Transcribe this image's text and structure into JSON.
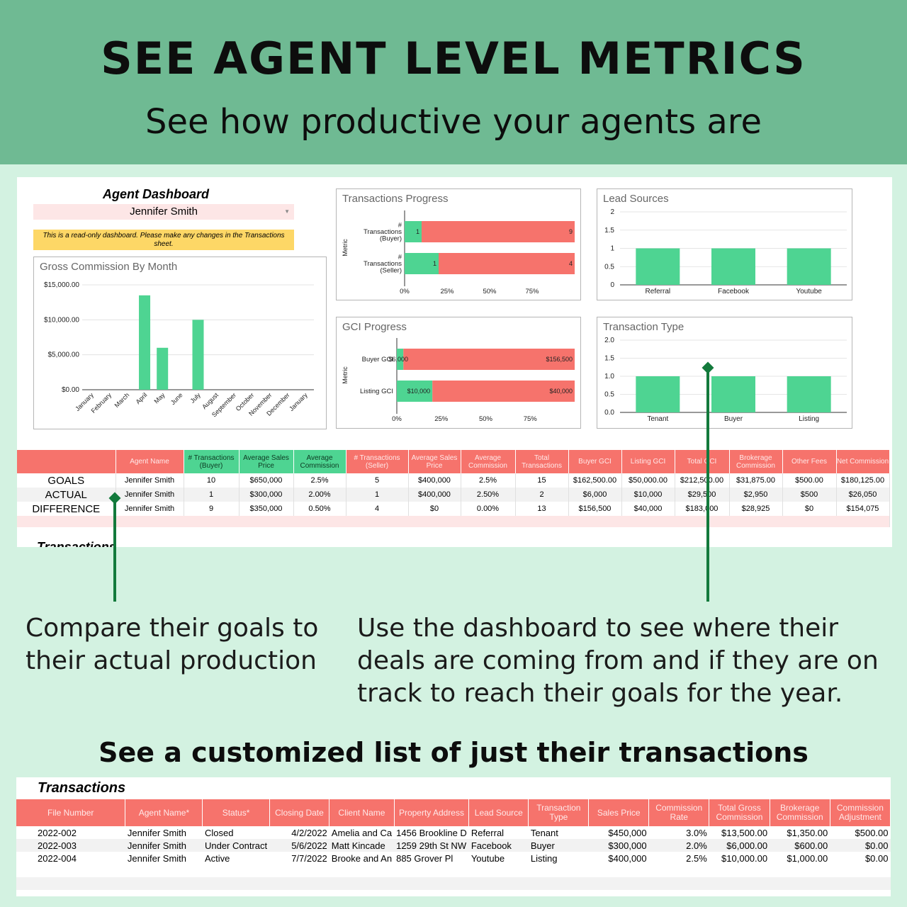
{
  "banner": {
    "title": "SEE AGENT LEVEL METRICS",
    "subtitle": "See how productive your agents are"
  },
  "dashboard": {
    "title": "Agent Dashboard",
    "agent_selected": "Jennifer Smith",
    "readonly_note": "This is a read-only dashboard.  Please make any changes in the Transactions sheet.",
    "transactions_cut_label": "Transactions"
  },
  "chart_data": [
    {
      "type": "bar",
      "title": "Gross Commission By Month",
      "categories": [
        "January",
        "February",
        "March",
        "April",
        "May",
        "June",
        "July",
        "August",
        "September",
        "October",
        "November",
        "December",
        "January"
      ],
      "values": [
        0,
        0,
        0,
        13500,
        6000,
        0,
        10000,
        0,
        0,
        0,
        0,
        0,
        0
      ],
      "yticks": [
        "$0.00",
        "$5,000.00",
        "$10,000.00",
        "$15,000.00"
      ],
      "ylim": [
        0,
        15000
      ],
      "color": "#4ed492"
    },
    {
      "type": "bar",
      "orientation": "horizontal-stacked",
      "title": "Transactions Progress",
      "ylabel": "Metric",
      "categories": [
        "# Transactions (Buyer)",
        "# Transactions (Seller)"
      ],
      "series": [
        {
          "values": [
            1,
            1
          ],
          "color": "#4ed492"
        },
        {
          "values": [
            9,
            4
          ],
          "color": "#f6736c"
        }
      ],
      "xticks": [
        "0%",
        "25%",
        "50%",
        "75%"
      ]
    },
    {
      "type": "bar",
      "title": "Lead Sources",
      "categories": [
        "Referral",
        "Facebook",
        "Youtube"
      ],
      "values": [
        1,
        1,
        1
      ],
      "yticks": [
        "0",
        "0.5",
        "1",
        "1.5",
        "2"
      ],
      "ylim": [
        0,
        2
      ],
      "color": "#4ed492"
    },
    {
      "type": "bar",
      "orientation": "horizontal-stacked",
      "title": "GCI Progress",
      "ylabel": "Metric",
      "categories": [
        "Buyer GCI",
        "Listing GCI"
      ],
      "series": [
        {
          "values": [
            6000,
            10000
          ],
          "labels": [
            "$6,000",
            "$10,000"
          ],
          "color": "#4ed492"
        },
        {
          "values": [
            156500,
            40000
          ],
          "labels": [
            "$156,500",
            "$40,000"
          ],
          "color": "#f6736c"
        }
      ],
      "xticks": [
        "0%",
        "25%",
        "50%",
        "75%"
      ]
    },
    {
      "type": "bar",
      "title": "Transaction Type",
      "categories": [
        "Tenant",
        "Buyer",
        "Listing"
      ],
      "values": [
        1,
        1,
        1
      ],
      "yticks": [
        "0.0",
        "0.5",
        "1.0",
        "1.5",
        "2.0"
      ],
      "ylim": [
        0,
        2
      ],
      "color": "#4ed492"
    }
  ],
  "metrics_table": {
    "headers": [
      {
        "label": "Agent Name",
        "tone": "red"
      },
      {
        "label": "# Transactions (Buyer)",
        "tone": "green"
      },
      {
        "label": "Average Sales Price",
        "tone": "green"
      },
      {
        "label": "Average Commission",
        "tone": "green"
      },
      {
        "label": "# Transactions (Seller)",
        "tone": "red"
      },
      {
        "label": "Average Sales Price",
        "tone": "red"
      },
      {
        "label": "Average Commission",
        "tone": "red"
      },
      {
        "label": "Total Transactions",
        "tone": "red"
      },
      {
        "label": "Buyer GCI",
        "tone": "red"
      },
      {
        "label": "Listing GCI",
        "tone": "red"
      },
      {
        "label": "Total GCI",
        "tone": "red"
      },
      {
        "label": "Brokerage Commission",
        "tone": "red"
      },
      {
        "label": "Other Fees",
        "tone": "red"
      },
      {
        "label": "Net Commission",
        "tone": "red"
      }
    ],
    "rows": [
      {
        "label": "GOALS",
        "cells": [
          "Jennifer Smith",
          "10",
          "$650,000",
          "2.5%",
          "5",
          "$400,000",
          "2.5%",
          "15",
          "$162,500.00",
          "$50,000.00",
          "$212,500.00",
          "$31,875.00",
          "$500.00",
          "$180,125.00"
        ]
      },
      {
        "label": "ACTUAL",
        "cells": [
          "Jennifer Smith",
          "1",
          "$300,000",
          "2.00%",
          "1",
          "$400,000",
          "2.50%",
          "2",
          "$6,000",
          "$10,000",
          "$29,500",
          "$2,950",
          "$500",
          "$26,050"
        ]
      },
      {
        "label": "DIFFERENCE",
        "cells": [
          "Jennifer Smith",
          "9",
          "$350,000",
          "0.50%",
          "4",
          "$0",
          "0.00%",
          "13",
          "$156,500",
          "$40,000",
          "$183,000",
          "$28,925",
          "$0",
          "$154,075"
        ]
      }
    ]
  },
  "captions": {
    "left": "Compare their goals to their actual production",
    "right": "Use the dashboard to see where their deals are coming from and if they are on track to reach their goals for the year.",
    "list_heading": "See a customized list of just their transactions"
  },
  "transactions_table": {
    "title": "Transactions",
    "headers": [
      "File Number",
      "Agent Name*",
      "Status*",
      "Closing Date",
      "Client Name",
      "Property Address",
      "Lead Source",
      "Transaction Type",
      "Sales Price",
      "Commission Rate",
      "Total Gross Commission",
      "Brokerage Commission",
      "Commission Adjustment"
    ],
    "rows": [
      [
        "2022-002",
        "Jennifer Smith",
        "Closed",
        "4/2/2022",
        "Amelia and Ca",
        "1456 Brookline D",
        "Referral",
        "Tenant",
        "$450,000",
        "3.0%",
        "$13,500.00",
        "$1,350.00",
        "$500.00"
      ],
      [
        "2022-003",
        "Jennifer Smith",
        "Under Contract",
        "5/6/2022",
        "Matt Kincade",
        "1259 29th St NW",
        "Facebook",
        "Buyer",
        "$300,000",
        "2.0%",
        "$6,000.00",
        "$600.00",
        "$0.00"
      ],
      [
        "2022-004",
        "Jennifer Smith",
        "Active",
        "7/7/2022",
        "Brooke and An",
        "885 Grover Pl",
        "Youtube",
        "Listing",
        "$400,000",
        "2.5%",
        "$10,000.00",
        "$1,000.00",
        "$0.00"
      ]
    ]
  },
  "colors": {
    "banner": "#6fba93",
    "background": "#d3f2e1",
    "green_bar": "#4ed492",
    "red_bar": "#f6736c",
    "pointer": "#137a3c",
    "note": "#fdd766"
  }
}
